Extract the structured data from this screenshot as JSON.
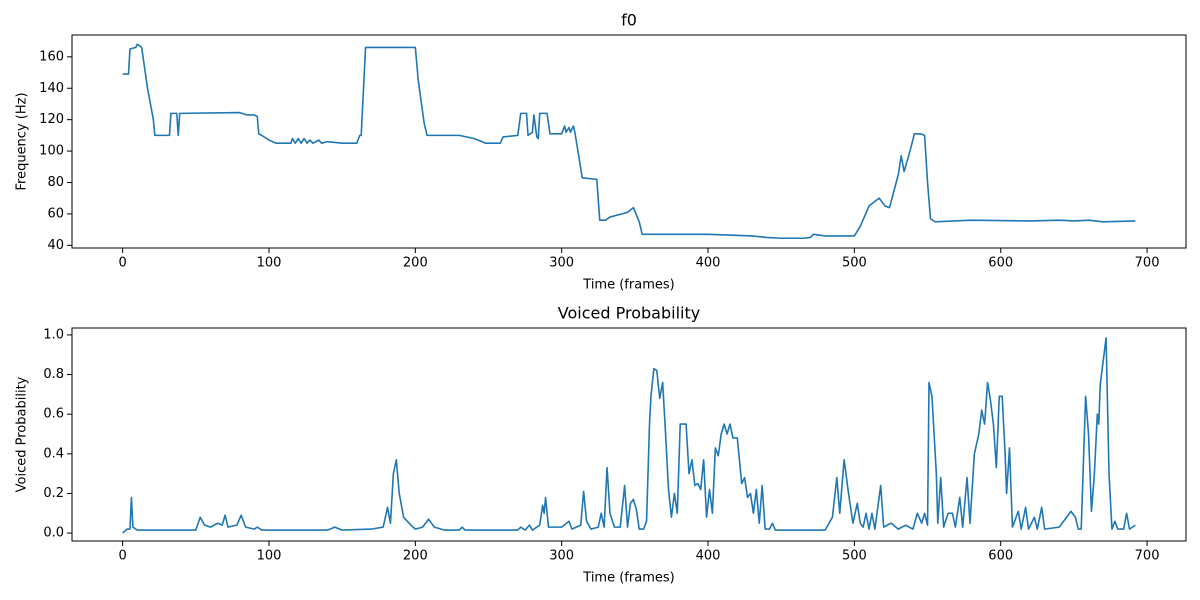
{
  "chart_data": [
    {
      "type": "line",
      "title": "f0",
      "x_label": "Time (frames)",
      "y_label": "Frequency (Hz)",
      "color": "#1f77b4",
      "xlim": [
        -34.6,
        726.6
      ],
      "ylim": [
        38.3,
        173.9
      ],
      "xticks": [
        0,
        100,
        200,
        300,
        400,
        500,
        600,
        700
      ],
      "yticks": [
        40,
        60,
        80,
        100,
        120,
        140,
        160
      ],
      "x": [
        0,
        4,
        5,
        9,
        10,
        13,
        17,
        21,
        22,
        32,
        33,
        37,
        38,
        39,
        80,
        85,
        90,
        92,
        93,
        95,
        100,
        105,
        115,
        116,
        118,
        120,
        122,
        124,
        126,
        128,
        130,
        134,
        136,
        140,
        150,
        160,
        162,
        163,
        166,
        200,
        202,
        206,
        208,
        230,
        240,
        243,
        248,
        258,
        260,
        270,
        272,
        276,
        277,
        280,
        281,
        283,
        284,
        285,
        290,
        292,
        300,
        302,
        303,
        305,
        306,
        308,
        309,
        312,
        314,
        324,
        326,
        330,
        333,
        345,
        349,
        353,
        355,
        360,
        400,
        430,
        440,
        450,
        465,
        470,
        472,
        480,
        490,
        500,
        504,
        510,
        514,
        517,
        521,
        524,
        530,
        532,
        534,
        538,
        541,
        545,
        548,
        550,
        552,
        555,
        580,
        620,
        640,
        650,
        660,
        670,
        692
      ],
      "values": [
        149,
        149,
        165,
        166,
        168,
        166,
        140,
        120,
        110,
        110,
        124,
        124,
        110,
        124,
        124.5,
        123,
        123,
        122,
        111,
        110,
        107,
        105,
        105,
        108,
        105,
        108,
        105,
        108,
        105,
        107,
        105,
        107,
        105,
        106,
        105,
        105,
        110,
        110,
        166,
        166,
        145,
        118,
        110,
        110,
        108,
        107,
        105,
        105,
        109,
        110,
        124,
        124,
        110,
        112,
        123,
        109,
        108,
        124,
        124,
        111,
        111,
        116,
        112,
        115,
        112,
        116,
        112,
        95,
        83,
        82,
        56,
        56,
        58,
        61,
        64,
        55,
        47,
        47,
        47,
        46,
        45,
        44.5,
        44.5,
        45,
        47,
        46,
        46,
        46,
        52,
        65,
        68,
        70,
        65,
        64,
        85,
        97,
        87,
        100,
        111,
        111,
        110,
        80,
        57,
        55,
        56,
        55.5,
        56,
        55.5,
        56,
        55,
        55.5
      ]
    },
    {
      "type": "line",
      "title": "Voiced Probability",
      "x_label": "Time (frames)",
      "y_label": "Voiced Probability",
      "color": "#1f77b4",
      "xlim": [
        -34.6,
        726.6
      ],
      "ylim": [
        -0.04,
        1.035
      ],
      "xticks": [
        0,
        100,
        200,
        300,
        400,
        500,
        600,
        700
      ],
      "yticks": [
        {
          "value": 0,
          "label": "0.0"
        },
        0.2,
        0.4,
        0.6,
        0.8,
        {
          "value": 1,
          "label": "1.0"
        }
      ],
      "x": [
        0,
        3,
        5,
        6,
        7,
        10,
        50,
        53,
        56,
        60,
        65,
        68,
        70,
        72,
        78,
        81,
        84,
        90,
        92,
        95,
        140,
        145,
        150,
        170,
        178,
        181,
        183,
        185,
        187,
        189,
        192,
        197,
        200,
        205,
        209,
        213,
        220,
        230,
        232,
        234,
        270,
        272,
        275,
        278,
        280,
        285,
        287,
        288,
        289,
        291,
        300,
        305,
        307,
        310,
        313,
        315,
        317,
        320,
        325,
        327,
        329,
        331,
        333,
        336,
        340,
        343,
        345,
        347,
        349,
        351,
        353,
        356,
        358,
        360,
        361,
        363,
        365,
        367,
        369,
        371,
        373,
        375,
        377,
        379,
        381,
        385,
        387,
        389,
        391,
        393,
        395,
        397,
        399,
        401,
        403,
        405,
        407,
        409,
        411,
        413,
        415,
        417,
        420,
        423,
        425,
        427,
        429,
        431,
        433,
        435,
        437,
        439,
        442,
        444,
        446,
        480,
        485,
        488,
        490,
        493,
        496,
        499,
        502,
        504,
        506,
        508,
        510,
        512,
        514,
        518,
        520,
        525,
        530,
        535,
        540,
        543,
        546,
        548,
        550,
        551,
        553,
        556,
        557,
        559,
        561,
        564,
        567,
        569,
        572,
        574,
        577,
        579,
        582,
        585,
        587,
        589,
        591,
        593,
        595,
        597,
        599,
        601,
        603,
        604,
        606,
        608,
        612,
        614,
        617,
        619,
        623,
        625,
        628,
        630,
        640,
        645,
        648,
        651,
        653,
        655,
        658,
        660,
        662,
        664,
        666,
        667,
        668,
        672,
        674,
        676,
        678,
        680,
        684,
        686,
        688,
        690,
        692
      ],
      "values": [
        0.0,
        0.02,
        0.02,
        0.18,
        0.03,
        0.015,
        0.015,
        0.08,
        0.04,
        0.03,
        0.05,
        0.04,
        0.09,
        0.03,
        0.04,
        0.09,
        0.03,
        0.02,
        0.03,
        0.015,
        0.015,
        0.03,
        0.015,
        0.02,
        0.03,
        0.13,
        0.05,
        0.3,
        0.37,
        0.2,
        0.08,
        0.04,
        0.02,
        0.03,
        0.07,
        0.03,
        0.015,
        0.015,
        0.03,
        0.015,
        0.015,
        0.03,
        0.015,
        0.04,
        0.015,
        0.04,
        0.14,
        0.1,
        0.18,
        0.03,
        0.03,
        0.06,
        0.02,
        0.03,
        0.04,
        0.21,
        0.06,
        0.02,
        0.03,
        0.1,
        0.03,
        0.33,
        0.1,
        0.03,
        0.03,
        0.24,
        0.03,
        0.15,
        0.17,
        0.12,
        0.02,
        0.02,
        0.06,
        0.55,
        0.69,
        0.83,
        0.82,
        0.68,
        0.76,
        0.5,
        0.22,
        0.08,
        0.2,
        0.1,
        0.55,
        0.55,
        0.3,
        0.37,
        0.24,
        0.25,
        0.22,
        0.37,
        0.08,
        0.22,
        0.1,
        0.43,
        0.39,
        0.5,
        0.55,
        0.5,
        0.55,
        0.48,
        0.48,
        0.25,
        0.28,
        0.18,
        0.2,
        0.1,
        0.22,
        0.05,
        0.24,
        0.02,
        0.02,
        0.05,
        0.015,
        0.015,
        0.08,
        0.28,
        0.1,
        0.37,
        0.2,
        0.05,
        0.15,
        0.05,
        0.03,
        0.1,
        0.02,
        0.1,
        0.02,
        0.24,
        0.03,
        0.05,
        0.02,
        0.04,
        0.02,
        0.1,
        0.05,
        0.1,
        0.04,
        0.76,
        0.69,
        0.3,
        0.05,
        0.28,
        0.03,
        0.1,
        0.1,
        0.03,
        0.18,
        0.03,
        0.28,
        0.05,
        0.4,
        0.5,
        0.62,
        0.55,
        0.76,
        0.67,
        0.55,
        0.33,
        0.69,
        0.69,
        0.4,
        0.2,
        0.43,
        0.03,
        0.11,
        0.02,
        0.13,
        0.02,
        0.08,
        0.02,
        0.13,
        0.02,
        0.03,
        0.08,
        0.11,
        0.08,
        0.02,
        0.02,
        0.69,
        0.5,
        0.11,
        0.3,
        0.6,
        0.55,
        0.75,
        0.985,
        0.3,
        0.02,
        0.06,
        0.02,
        0.02,
        0.1,
        0.02,
        0.03,
        0.04
      ]
    }
  ]
}
